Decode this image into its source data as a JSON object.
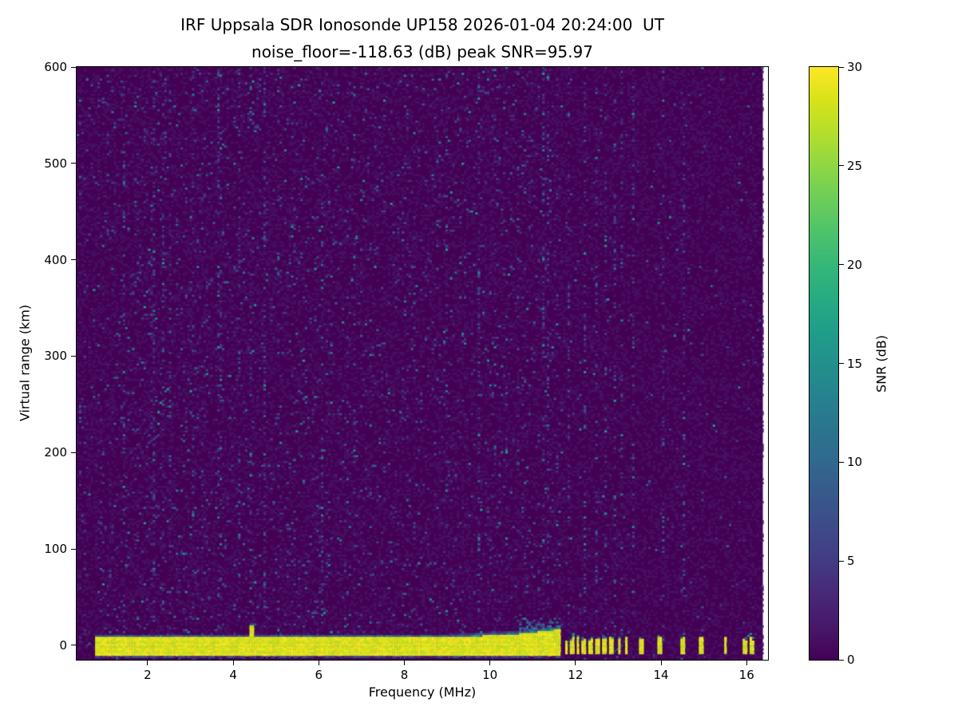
{
  "chart_data": {
    "type": "heatmap",
    "title": "IRF Uppsala SDR Ionosonde UP158 2026-01-04 20:24:00  UT",
    "subtitle": "noise_floor=-118.63 (dB) peak SNR=95.97",
    "xlabel": "Frequency (MHz)",
    "ylabel": "Virtual range (km)",
    "xlim": [
      0.34,
      16.5
    ],
    "ylim": [
      -15,
      600
    ],
    "xticks": [
      2,
      4,
      6,
      8,
      10,
      12,
      14,
      16
    ],
    "yticks": [
      0,
      100,
      200,
      300,
      400,
      500,
      600
    ],
    "colorbar": {
      "label": "SNR (dB)",
      "min": 0,
      "max": 30,
      "ticks": [
        0,
        5,
        10,
        15,
        20,
        25,
        30
      ],
      "colormap": "viridis"
    },
    "noise_floor_db": -118.63,
    "peak_snr_db": 95.97,
    "data_freq_max_mhz": 16.38,
    "features": {
      "background_snr_db": 0.8,
      "speckle": {
        "dense_freq_max_mhz": 11.68,
        "base_density_dense": 0.045,
        "base_density_sparse": 0.008,
        "max_snr_db": 16
      },
      "ground_return": {
        "freq_start_mhz": 0.75,
        "freq_end_mhz": 11.65,
        "center_km": 0,
        "top_km": 8,
        "bottom_km": -11,
        "snr_db": 30,
        "spike_freq_mhz": 4.45,
        "spike_top_km": 20
      },
      "cloud": {
        "freq_start_mhz": 10.65,
        "freq_end_mhz": 11.65,
        "top_km": 30
      },
      "pulsed_returns": {
        "halfwidth_mhz": 0.045,
        "snr_db": 30,
        "freqs_mhz": [
          11.78,
          11.92,
          12.06,
          12.2,
          12.36,
          12.52,
          12.68,
          12.85,
          13.02,
          13.18,
          13.52,
          13.98,
          14.5,
          14.95,
          15.5,
          15.95,
          16.12
        ]
      },
      "rfi_columns_mhz": [
        11.85,
        12.2,
        12.5,
        12.72,
        12.92,
        13.1,
        13.35,
        14.05,
        14.55
      ]
    }
  }
}
